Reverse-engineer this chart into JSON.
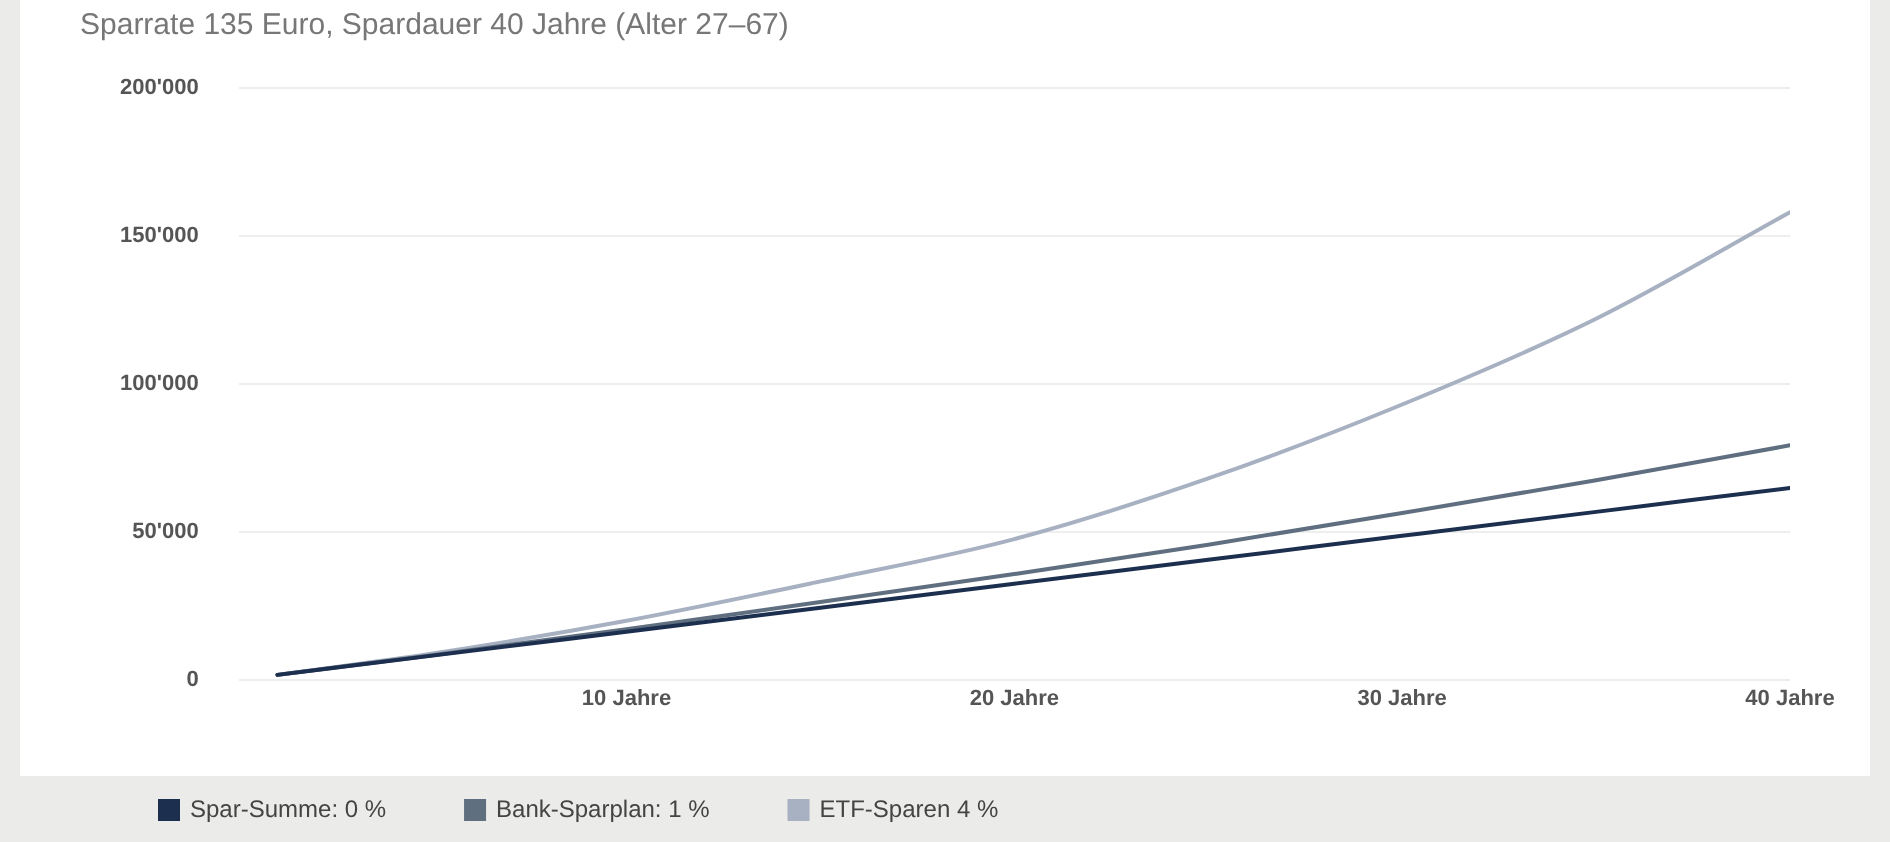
{
  "chart_data": {
    "type": "line",
    "title": "Sparrate 135 Euro, Spardauer 40 Jahre (Alter 27–67)",
    "x": [
      1,
      5,
      10,
      15,
      20,
      25,
      30,
      35,
      40
    ],
    "series": [
      {
        "name": "Spar-Summe: 0 %",
        "color": "#1c2f4f",
        "values": [
          1600,
          8100,
          16200,
          24300,
          32400,
          40500,
          48600,
          56700,
          64800
        ]
      },
      {
        "name": "Bank-Sparplan: 1 %",
        "color": "#5f6f80",
        "values": [
          1600,
          8260,
          17000,
          26200,
          35700,
          45600,
          56300,
          67400,
          79200
        ]
      },
      {
        "name": "ETF-Sparen 4 %",
        "color": "#a7b1c2",
        "values": [
          1600,
          8800,
          19900,
          33200,
          47500,
          68000,
          93000,
          122000,
          158000
        ]
      }
    ],
    "xlim": [
      0,
      40
    ],
    "xticks": [
      {
        "value": 10,
        "label": "10 Jahre"
      },
      {
        "value": 20,
        "label": "20 Jahre"
      },
      {
        "value": 30,
        "label": "30 Jahre"
      },
      {
        "value": 40,
        "label": "40 Jahre"
      }
    ],
    "ylim": [
      0,
      200000
    ],
    "yticks": [
      0,
      {
        "value": 50000,
        "label": "50'000"
      },
      {
        "value": 100000,
        "label": "100'000"
      },
      {
        "value": 150000,
        "label": "150'000"
      },
      {
        "value": 200000,
        "label": "200'000"
      }
    ],
    "grid": "y",
    "legend": "bottom left",
    "marker": "none",
    "line_style": "solid"
  }
}
